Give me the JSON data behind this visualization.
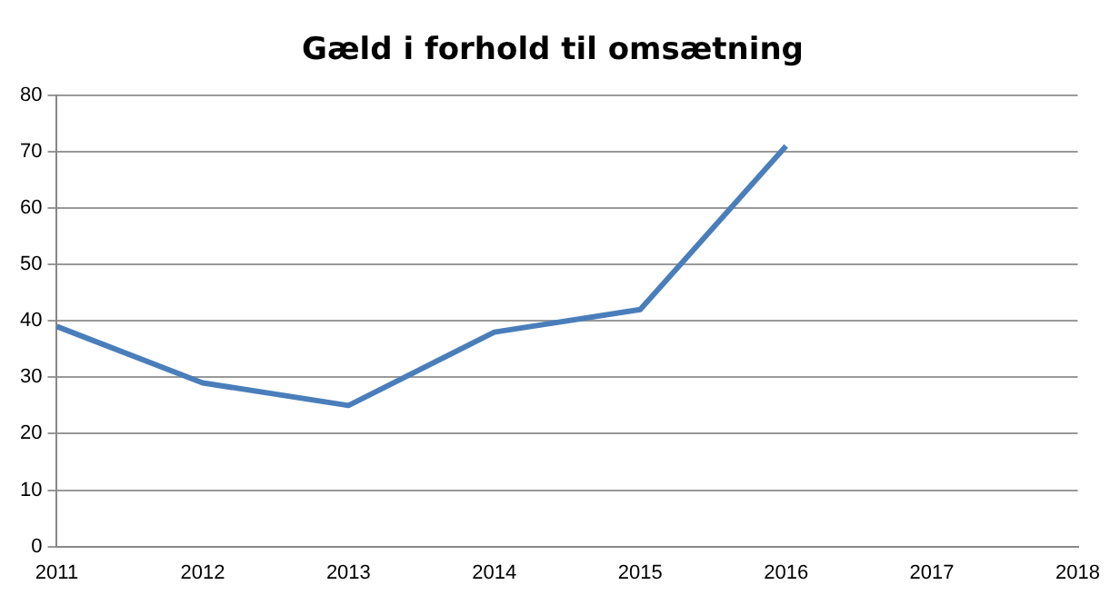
{
  "chart_data": {
    "type": "line",
    "title": "Gæld i forhold til omsætning",
    "categories": [
      "2011",
      "2012",
      "2013",
      "2014",
      "2015",
      "2016",
      "2017",
      "2018"
    ],
    "series": [
      {
        "color": "#4a7ebb",
        "values": [
          39,
          29,
          25,
          38,
          42,
          71,
          null,
          null
        ]
      }
    ],
    "ylim": [
      0,
      80
    ],
    "yticks": [
      0,
      10,
      20,
      30,
      40,
      50,
      60,
      70,
      80
    ],
    "grid": "y",
    "legend": false,
    "marker": "none",
    "line_style": "solid"
  }
}
